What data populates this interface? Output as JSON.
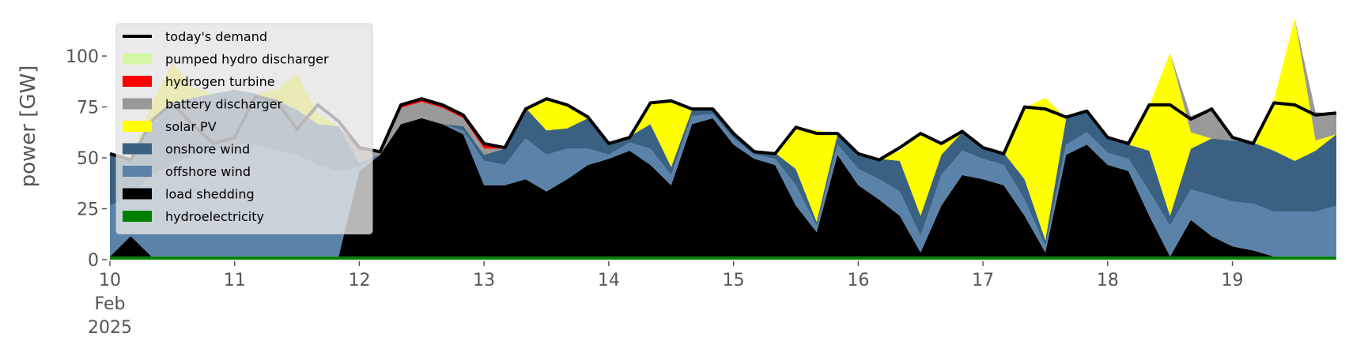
{
  "chart_data": {
    "type": "stacked-area",
    "y_label": "power [GW]",
    "x": [
      0,
      4,
      8,
      12,
      16,
      20,
      24,
      28,
      32,
      36,
      40,
      44,
      48,
      52,
      56,
      60,
      64,
      68,
      72,
      76,
      80,
      84,
      88,
      92,
      96,
      100,
      104,
      108,
      112,
      116,
      120,
      124,
      128,
      132,
      136,
      140,
      144,
      148,
      152,
      156,
      160,
      164,
      168,
      172,
      176,
      180,
      184,
      188,
      192,
      196,
      200,
      204,
      208,
      212,
      216,
      220,
      224,
      228,
      232,
      236
    ],
    "xlim": [
      0,
      236
    ],
    "xticks": [
      {
        "value": 0,
        "label": "10\nFeb\n2025"
      },
      {
        "value": 24,
        "label": "11"
      },
      {
        "value": 48,
        "label": "12"
      },
      {
        "value": 72,
        "label": "13"
      },
      {
        "value": 96,
        "label": "14"
      },
      {
        "value": 120,
        "label": "15"
      },
      {
        "value": 144,
        "label": "16"
      },
      {
        "value": 168,
        "label": "17"
      },
      {
        "value": 192,
        "label": "18"
      },
      {
        "value": 216,
        "label": "19"
      }
    ],
    "ylim": [
      0,
      119
    ],
    "yticks": [
      0,
      25,
      50,
      75,
      100
    ],
    "demand": {
      "name": "today's demand",
      "color": "#000000",
      "values": [
        52,
        49,
        68,
        77,
        66,
        57,
        60,
        80,
        78,
        64,
        76,
        68,
        55,
        53,
        76,
        79,
        76,
        71,
        57,
        55,
        74,
        79,
        76,
        70,
        57,
        60,
        77,
        78,
        74,
        74,
        62,
        53,
        52,
        65,
        62,
        62,
        52,
        49,
        55,
        62,
        57,
        63,
        55,
        52,
        75,
        74,
        70,
        73,
        60,
        57,
        76,
        76,
        69,
        74,
        60,
        57,
        77,
        76,
        71,
        72
      ]
    },
    "series": [
      {
        "name": "hydroelectricity",
        "color": "#008000",
        "values": [
          1.5,
          1.5,
          1.5,
          1.5,
          1.5,
          1.5,
          1.5,
          1.5,
          1.5,
          1.5,
          1.5,
          1.5,
          1.5,
          1.5,
          1.5,
          1.5,
          1.5,
          1.5,
          1.5,
          1.5,
          1.5,
          1.5,
          1.5,
          1.5,
          1.5,
          1.5,
          1.5,
          1.5,
          1.5,
          1.5,
          1.5,
          1.5,
          1.5,
          1.5,
          1.5,
          1.5,
          1.5,
          1.5,
          1.5,
          1.5,
          1.5,
          1.5,
          1.5,
          1.5,
          1.5,
          1.5,
          1.5,
          1.5,
          1.5,
          1.5,
          1.5,
          1.5,
          1.5,
          1.5,
          1.5,
          1.5,
          1.5,
          1.5,
          1.5,
          1.5
        ]
      },
      {
        "name": "load shedding",
        "color": "#000000",
        "values": [
          0,
          10,
          0,
          0,
          0,
          0,
          0,
          0,
          0,
          0,
          0,
          0,
          42,
          50,
          65,
          68,
          65,
          60,
          35,
          35,
          38,
          32,
          38,
          45,
          48,
          52,
          45,
          35,
          65,
          68,
          55,
          48,
          45,
          25,
          12,
          50,
          35,
          28,
          20,
          2,
          25,
          40,
          38,
          35,
          20,
          2,
          50,
          55,
          45,
          42,
          20,
          0,
          18,
          10,
          5,
          3,
          0,
          0,
          0,
          0
        ]
      },
      {
        "name": "offshore wind",
        "color": "#5b83aa",
        "values": [
          25,
          20,
          40,
          45,
          50,
          52,
          55,
          55,
          52,
          50,
          45,
          42,
          2,
          0,
          0,
          0,
          0,
          2,
          12,
          10,
          20,
          18,
          15,
          8,
          2,
          4,
          8,
          5,
          4,
          2,
          3,
          2,
          3,
          10,
          3,
          5,
          8,
          10,
          12,
          8,
          15,
          12,
          10,
          10,
          8,
          3,
          5,
          6,
          6,
          6,
          12,
          15,
          15,
          20,
          22,
          23,
          22,
          22,
          22,
          25
        ]
      },
      {
        "name": "onshore wind",
        "color": "#3b6182",
        "values": [
          25,
          18,
          25,
          30,
          28,
          28,
          27,
          25,
          25,
          22,
          20,
          22,
          2,
          0,
          0,
          0,
          0,
          2,
          3,
          8,
          15,
          12,
          10,
          15,
          5,
          3,
          12,
          4,
          3,
          2,
          2,
          1.5,
          3,
          8,
          2,
          5,
          8,
          10,
          15,
          10,
          10,
          9,
          5,
          6,
          10,
          3,
          13,
          10,
          8,
          7,
          20,
          5,
          20,
          28,
          30,
          30,
          30,
          25,
          30,
          35
        ]
      },
      {
        "name": "solar PV",
        "color": "#ffff00",
        "values": [
          0,
          0,
          10,
          20,
          5,
          0,
          0,
          0,
          5,
          18,
          5,
          0,
          0,
          0,
          0,
          0,
          0,
          0,
          0,
          0,
          0,
          15,
          11,
          0,
          0,
          0,
          10,
          32,
          0,
          0,
          0,
          0,
          0,
          20,
          45,
          0,
          0,
          0,
          5,
          40,
          5,
          0,
          0,
          0,
          35,
          70,
          0,
          0,
          0,
          0,
          22,
          80,
          8,
          0,
          0,
          0,
          25,
          70,
          5,
          0
        ]
      },
      {
        "name": "battery discharger",
        "color": "#999999",
        "values": [
          0,
          0,
          0,
          0,
          0,
          0,
          0,
          0,
          0,
          0,
          0,
          0,
          6,
          2,
          8,
          8,
          8,
          4,
          3,
          0,
          0,
          0,
          0,
          0,
          0,
          0,
          0,
          0,
          0,
          0,
          0,
          0,
          0,
          0,
          0,
          0,
          0,
          0,
          0,
          0,
          0,
          0,
          0,
          0,
          0,
          0,
          0,
          0,
          0,
          0,
          0,
          0,
          8,
          15,
          2,
          0,
          0,
          0,
          14,
          10
        ]
      },
      {
        "name": "hydrogen turbine",
        "color": "#ff0000",
        "values": [
          0,
          0,
          0,
          0,
          0,
          0,
          0,
          0,
          0,
          0,
          0,
          0,
          1,
          0,
          1,
          1.5,
          1.5,
          2,
          2.5,
          0,
          0,
          0,
          0,
          0,
          0,
          0,
          0,
          0,
          0,
          0,
          0,
          0,
          0,
          0,
          0,
          0,
          0,
          0,
          0,
          0,
          0,
          0,
          0,
          0,
          0,
          0,
          0,
          0,
          0,
          0,
          0,
          0,
          0,
          0,
          0,
          0,
          0,
          0,
          0,
          0
        ]
      },
      {
        "name": "pumped hydro discharger",
        "color": "#d4f7a3",
        "values": [
          0,
          0,
          0,
          0,
          0,
          0,
          0,
          0,
          0,
          0,
          0,
          0,
          0,
          0,
          0,
          0,
          0,
          0,
          0,
          0,
          0,
          0,
          0,
          0,
          0,
          0,
          0,
          0,
          0,
          0,
          0,
          0,
          0,
          0,
          0,
          0,
          0,
          0,
          0,
          0,
          0,
          0,
          0,
          0,
          0,
          0,
          0,
          0,
          0,
          0,
          0,
          0,
          0,
          0,
          0,
          0,
          0,
          0,
          0,
          0
        ]
      }
    ],
    "grid": false
  }
}
